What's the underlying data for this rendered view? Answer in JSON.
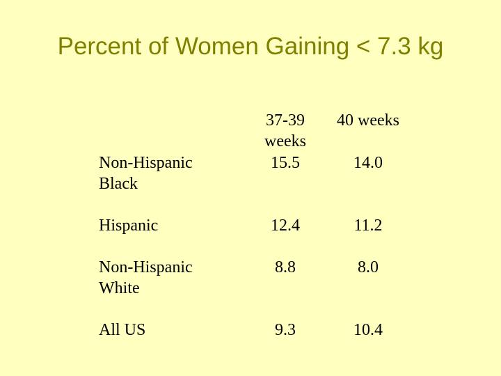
{
  "title": "Percent of Women Gaining < 7.3 kg",
  "table": {
    "columns": [
      "37-39\nweeks",
      "40 weeks"
    ],
    "rows": [
      {
        "label": "Non-Hispanic\nBlack",
        "values": [
          "15.5",
          "14.0"
        ]
      },
      {
        "label": "Hispanic",
        "values": [
          "12.4",
          "11.2"
        ]
      },
      {
        "label": "Non-Hispanic\nWhite",
        "values": [
          "8.8",
          "8.0"
        ]
      },
      {
        "label": "All US",
        "values": [
          "9.3",
          "10.4"
        ]
      }
    ]
  },
  "colors": {
    "background": "#ffffc0",
    "title": "#808000",
    "text": "#000000"
  }
}
